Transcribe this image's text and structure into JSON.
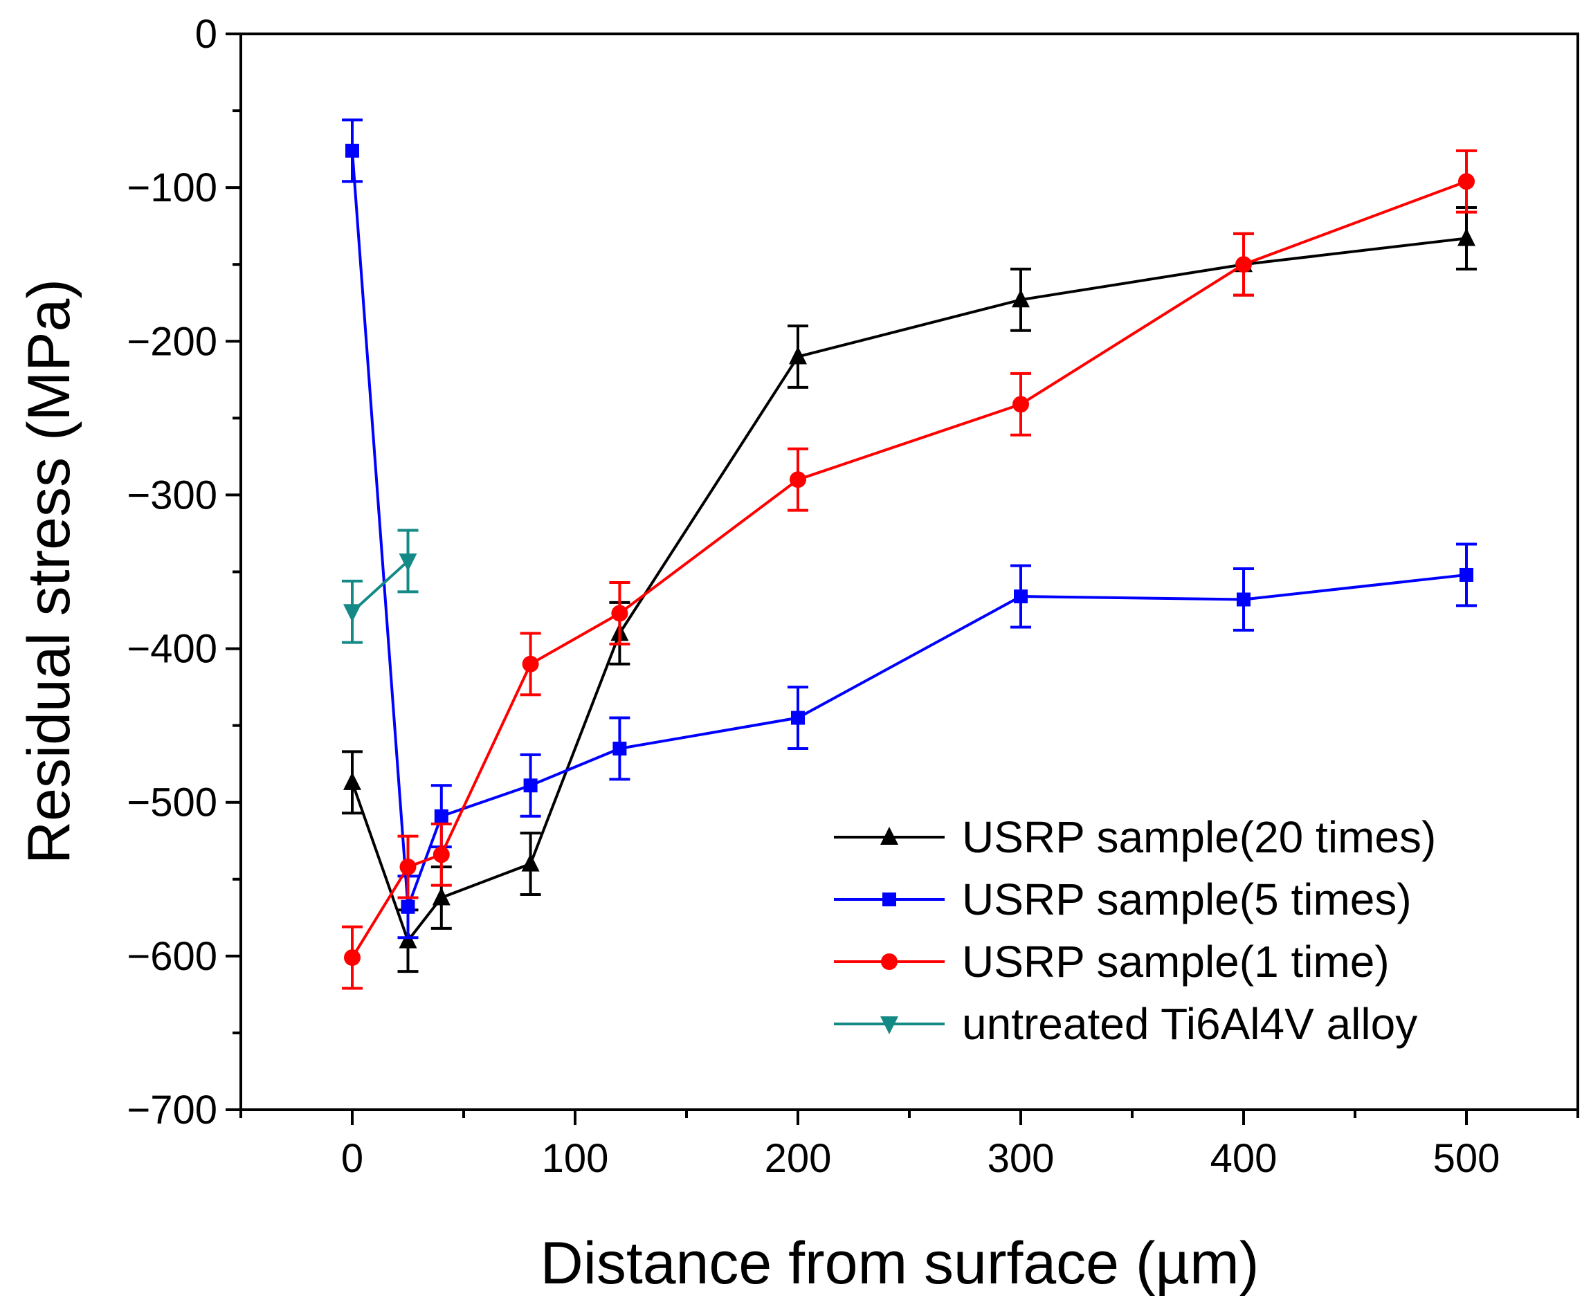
{
  "chart_data": {
    "type": "line",
    "xlabel": "Distance from surface (µm)",
    "ylabel": "Residual stress (MPa)",
    "xlim": [
      -50,
      550
    ],
    "ylim": [
      -700,
      0
    ],
    "xticks": [
      0,
      100,
      200,
      300,
      400,
      500
    ],
    "yticks": [
      0,
      -100,
      -200,
      -300,
      -400,
      -500,
      -600,
      -700
    ],
    "xtick_labels": [
      "0",
      "100",
      "200",
      "300",
      "400",
      "500"
    ],
    "ytick_labels": [
      "0",
      "−100",
      "−200",
      "−300",
      "−400",
      "−500",
      "−600",
      "−700"
    ],
    "x_minor_step": 50,
    "y_minor_step": 50,
    "grid": false,
    "legend_position": "bottom-right",
    "series": [
      {
        "name": "USRP sample(20 times)",
        "color": "#000000",
        "marker": "triangle-up",
        "x": [
          0,
          25,
          40,
          80,
          120,
          200,
          300,
          400,
          500
        ],
        "y": [
          -487,
          -590,
          -562,
          -540,
          -390,
          -210,
          -173,
          -150,
          -133
        ],
        "error": [
          20,
          20,
          20,
          20,
          20,
          20,
          20,
          20,
          20
        ]
      },
      {
        "name": "USRP sample(5 times)",
        "color": "#0000ff",
        "marker": "square",
        "x": [
          0,
          25,
          40,
          80,
          120,
          200,
          300,
          400,
          500
        ],
        "y": [
          -76,
          -568,
          -509,
          -489,
          -465,
          -445,
          -366,
          -368,
          -352
        ],
        "error": [
          20,
          20,
          20,
          20,
          20,
          20,
          20,
          20,
          20
        ]
      },
      {
        "name": "USRP sample(1 time)",
        "color": "#ff0000",
        "marker": "circle",
        "x": [
          0,
          25,
          40,
          80,
          120,
          200,
          300,
          400,
          500
        ],
        "y": [
          -601,
          -542,
          -534,
          -410,
          -377,
          -290,
          -241,
          -150,
          -96
        ],
        "error": [
          20,
          20,
          20,
          20,
          20,
          20,
          20,
          20,
          20
        ]
      },
      {
        "name": "untreated Ti6Al4V alloy",
        "color": "#138a86",
        "marker": "triangle-down",
        "x": [
          0,
          25
        ],
        "y": [
          -376,
          -343
        ],
        "error": [
          20,
          20
        ]
      }
    ]
  }
}
